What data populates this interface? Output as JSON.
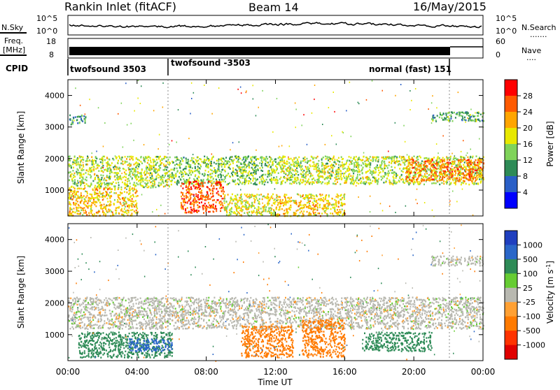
{
  "header": {
    "station": "Rankin Inlet (fitACF)",
    "beam": "Beam 14",
    "date": "16/May/2015"
  },
  "noise_panel": {
    "left_label": "N.Sky",
    "left_ticks": [
      "10^5",
      "10^0"
    ],
    "right_ticks": [
      "10^5",
      "10^0"
    ],
    "right_label": "N.Search",
    "right_dots": "......."
  },
  "freq_panel": {
    "label_line1": "Freq.",
    "label_line2": "[MHz]",
    "left_ticks": [
      "18",
      "8"
    ],
    "right_ticks": [
      "60",
      "0"
    ],
    "right_label": "Nave",
    "right_dots": "...."
  },
  "cpid_panel": {
    "label": "CPID",
    "programs": [
      {
        "name": "twofsound 3503",
        "start_hour": 0.0,
        "end_hour": 6.0
      },
      {
        "name": "twofsound -3503",
        "start_hour": 6.0,
        "end_hour": 22.0
      },
      {
        "name": "normal (fast) 151",
        "start_hour": 22.0,
        "end_hour": 24.0
      }
    ]
  },
  "axes": {
    "ylabel": "Slant Range [km]",
    "yticks": [
      "4000",
      "3000",
      "2000",
      "1000"
    ],
    "xlabel": "Time UT",
    "xticks": [
      "00:00",
      "04:00",
      "08:00",
      "12:00",
      "16:00",
      "20:00",
      "00:00"
    ]
  },
  "power_scale": {
    "label": "Power [dB]",
    "ticks": [
      "28",
      "24",
      "20",
      "16",
      "12",
      "8",
      "4"
    ],
    "colors": [
      "#0000ff",
      "#2a5fc7",
      "#2e8b57",
      "#7fd35a",
      "#e8e800",
      "#ffa500",
      "#ff5a00",
      "#ff0000"
    ]
  },
  "velocity_scale": {
    "label": "Velocity [m s",
    "label_sup": "-1",
    "label_close": "]",
    "ticks": [
      "1000",
      "500",
      "100",
      "25",
      "-25",
      "-100",
      "-500",
      "-1000"
    ],
    "colors": [
      "#1f3fbf",
      "#2a66c8",
      "#2e8b57",
      "#66cc33",
      "#b8b8b0",
      "#ffa033",
      "#ff7a00",
      "#ff3300",
      "#e00000"
    ]
  },
  "chart_data": {
    "type": "heatmap",
    "title": "Rankin Inlet (fitACF)  Beam 14  16/May/2015",
    "xlabel": "Time UT",
    "ylabel": "Slant Range [km]",
    "xlim": [
      0,
      24
    ],
    "ylim": [
      180,
      4500
    ],
    "panels": [
      {
        "quantity": "Power [dB]",
        "bands": [
          {
            "t0": 0.0,
            "t1": 6.0,
            "r0": 1100,
            "r1": 2100,
            "value": 16
          },
          {
            "t0": 6.0,
            "t1": 12.0,
            "r0": 1200,
            "r1": 2100,
            "value": 14
          },
          {
            "t0": 12.0,
            "t1": 24.0,
            "r0": 1200,
            "r1": 2100,
            "value": 16
          },
          {
            "t0": 0.0,
            "t1": 4.0,
            "r0": 200,
            "r1": 1100,
            "value": 20
          },
          {
            "t0": 6.5,
            "t1": 9.0,
            "r0": 300,
            "r1": 1300,
            "value": 26
          },
          {
            "t0": 9.0,
            "t1": 12.0,
            "r0": 200,
            "r1": 900,
            "value": 18
          },
          {
            "t0": 12.0,
            "t1": 16.0,
            "r0": 200,
            "r1": 900,
            "value": 20
          },
          {
            "t0": 19.5,
            "t1": 24.0,
            "r0": 1300,
            "r1": 2000,
            "value": 24
          },
          {
            "t0": 0.0,
            "t1": 1.0,
            "r0": 3100,
            "r1": 3400,
            "value": 10
          },
          {
            "t0": 21.0,
            "t1": 24.0,
            "r0": 3200,
            "r1": 3500,
            "value": 12
          }
        ]
      },
      {
        "quantity": "Velocity [m s-1]",
        "bands": [
          {
            "t0": 0.0,
            "t1": 24.0,
            "r0": 1200,
            "r1": 2200,
            "value": 0
          },
          {
            "t0": 0.5,
            "t1": 6.0,
            "r0": 300,
            "r1": 1100,
            "value": 200
          },
          {
            "t0": 3.5,
            "t1": 6.0,
            "r0": 500,
            "r1": 900,
            "value": 600
          },
          {
            "t0": 10.0,
            "t1": 13.0,
            "r0": 300,
            "r1": 1300,
            "value": -200
          },
          {
            "t0": 13.5,
            "t1": 16.0,
            "r0": 300,
            "r1": 1500,
            "value": -250
          },
          {
            "t0": 17.0,
            "t1": 21.0,
            "r0": 500,
            "r1": 1100,
            "value": 150
          },
          {
            "t0": 21.0,
            "t1": 24.0,
            "r0": 3200,
            "r1": 3500,
            "value": 0
          }
        ]
      }
    ]
  }
}
